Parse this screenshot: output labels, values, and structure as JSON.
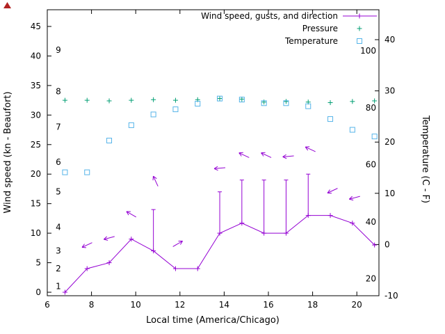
{
  "chart_data": {
    "type": "line",
    "title": "",
    "xlabel": "Local time (America/Chicago)",
    "ylabel_left": "Wind speed (kn - Beaufort)",
    "ylabel_right": "Temperature (C - F)",
    "x_range": [
      6,
      21
    ],
    "x_ticks": [
      6,
      8,
      10,
      12,
      14,
      16,
      18,
      20
    ],
    "left_axis": {
      "ticks": [
        0,
        5,
        10,
        15,
        20,
        25,
        30,
        35,
        40,
        45
      ],
      "range": [
        0,
        47.5
      ]
    },
    "right_axis": {
      "ticks": [
        -10,
        0,
        10,
        20,
        30,
        40
      ],
      "range_c": [
        -10,
        46
      ]
    },
    "beaufort_scale_labels": [
      {
        "beaufort": "1",
        "kn": 1
      },
      {
        "beaufort": "2",
        "kn": 4
      },
      {
        "beaufort": "3",
        "kn": 7
      },
      {
        "beaufort": "4",
        "kn": 11
      },
      {
        "beaufort": "5",
        "kn": 17
      },
      {
        "beaufort": "6",
        "kn": 22
      },
      {
        "beaufort": "7",
        "kn": 28
      },
      {
        "beaufort": "8",
        "kn": 34
      },
      {
        "beaufort": "9",
        "kn": 41
      }
    ],
    "fahrenheit_scale_labels": [
      {
        "f": "20",
        "c": -6.7
      },
      {
        "f": "40",
        "c": 4.4
      },
      {
        "f": "60",
        "c": 15.6
      },
      {
        "f": "80",
        "c": 26.7
      },
      {
        "f": "100",
        "c": 37.8
      }
    ],
    "legend": {
      "position": "top-right",
      "entries": [
        {
          "label": "Wind speed, gusts, and direction",
          "series": "wind",
          "marker": "line-plus"
        },
        {
          "label": "Pressure",
          "series": "pressure",
          "marker": "plus"
        },
        {
          "label": "Temperature",
          "series": "temperature",
          "marker": "square"
        }
      ]
    },
    "series": {
      "wind": {
        "x": [
          6.8,
          7.8,
          8.8,
          9.8,
          10.8,
          11.8,
          12.8,
          13.8,
          14.8,
          15.8,
          16.8,
          17.8,
          18.8,
          19.8,
          20.8
        ],
        "speed_kn": [
          0,
          4,
          5,
          9,
          7,
          4,
          4,
          10,
          11.7,
          10,
          10,
          13,
          13,
          11.7,
          8
        ],
        "gust_kn": [
          0,
          4,
          5,
          9,
          14,
          4,
          4,
          17,
          19,
          19,
          19,
          20,
          13,
          11.7,
          8
        ]
      },
      "wind_direction_arrows": [
        {
          "x": 7.8,
          "y": 8.0,
          "deg": 205
        },
        {
          "x": 8.8,
          "y": 9.2,
          "deg": 195
        },
        {
          "x": 9.8,
          "y": 13.2,
          "deg": 150
        },
        {
          "x": 10.9,
          "y": 18.8,
          "deg": 115
        },
        {
          "x": 11.9,
          "y": 8.2,
          "deg": 30
        },
        {
          "x": 13.8,
          "y": 21.0,
          "deg": 185
        },
        {
          "x": 14.9,
          "y": 23.2,
          "deg": 155
        },
        {
          "x": 15.9,
          "y": 23.2,
          "deg": 155
        },
        {
          "x": 16.9,
          "y": 23.0,
          "deg": 185
        },
        {
          "x": 17.9,
          "y": 24.2,
          "deg": 155
        },
        {
          "x": 18.9,
          "y": 17.2,
          "deg": 205
        },
        {
          "x": 19.9,
          "y": 16.0,
          "deg": 195
        }
      ],
      "pressure": {
        "x": [
          6.8,
          7.8,
          8.8,
          9.8,
          10.8,
          11.8,
          12.8,
          13.8,
          14.8,
          15.8,
          16.8,
          17.8,
          18.8,
          19.8,
          20.8
        ],
        "y_left_units": [
          32.5,
          32.5,
          32.4,
          32.5,
          32.6,
          32.5,
          32.6,
          32.8,
          32.7,
          32.2,
          32.3,
          32.2,
          32.1,
          32.3,
          32.4
        ]
      },
      "temperature": {
        "x": [
          6.8,
          7.8,
          8.8,
          9.8,
          10.8,
          11.8,
          12.8,
          13.8,
          14.8,
          15.8,
          16.8,
          17.8,
          18.8,
          19.8,
          20.8
        ],
        "c": [
          14.1,
          14.1,
          20.3,
          23.3,
          25.4,
          26.4,
          27.5,
          28.5,
          28.3,
          27.6,
          27.6,
          27.0,
          24.5,
          22.4,
          21.1
        ]
      }
    },
    "colors": {
      "wind": "#9400d3",
      "pressure": "#009e73",
      "temperature": "#56b4e9",
      "axis": "#000000",
      "background": "#ffffff",
      "corner_marker": "#b22222"
    }
  }
}
